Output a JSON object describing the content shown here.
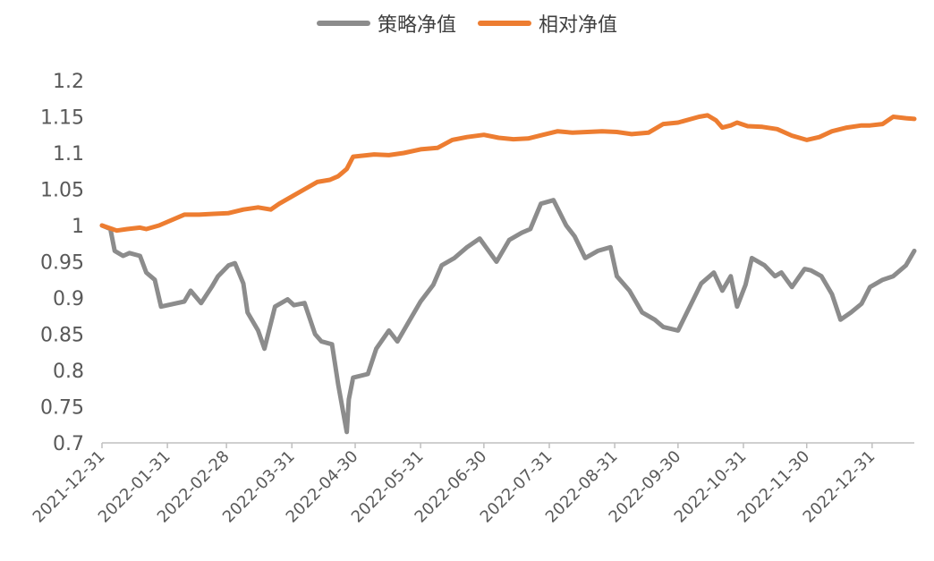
{
  "chart_data": {
    "type": "line",
    "legend_position": "top-center",
    "grid": false,
    "ylim": [
      0.7,
      1.2
    ],
    "y_ticks": [
      "0.7",
      "0.75",
      "0.8",
      "0.85",
      "0.9",
      "0.95",
      "1",
      "1.05",
      "1.1",
      "1.15",
      "1.2"
    ],
    "x_ticks": [
      "2021-12-31",
      "2022-01-31",
      "2022-02-28",
      "2022-03-31",
      "2022-04-30",
      "2022-05-31",
      "2022-06-30",
      "2022-07-31",
      "2022-08-31",
      "2022-09-30",
      "2022-10-31",
      "2022-11-30",
      "2022-12-31"
    ],
    "xlim": [
      "2021-12-31",
      "2023-01-20"
    ],
    "series": [
      {
        "name": "策略净值",
        "color": "#8c8c8c",
        "x": [
          "2021-12-31",
          "2022-01-04",
          "2022-01-06",
          "2022-01-10",
          "2022-01-13",
          "2022-01-18",
          "2022-01-21",
          "2022-01-25",
          "2022-01-28",
          "2022-02-08",
          "2022-02-11",
          "2022-02-16",
          "2022-02-21",
          "2022-02-24",
          "2022-03-01",
          "2022-03-04",
          "2022-03-08",
          "2022-03-10",
          "2022-03-15",
          "2022-03-18",
          "2022-03-23",
          "2022-03-29",
          "2022-04-01",
          "2022-04-06",
          "2022-04-11",
          "2022-04-14",
          "2022-04-19",
          "2022-04-22",
          "2022-04-26",
          "2022-04-27",
          "2022-04-29",
          "2022-05-06",
          "2022-05-10",
          "2022-05-16",
          "2022-05-20",
          "2022-05-25",
          "2022-05-31",
          "2022-06-06",
          "2022-06-10",
          "2022-06-16",
          "2022-06-22",
          "2022-06-28",
          "2022-07-01",
          "2022-07-06",
          "2022-07-12",
          "2022-07-18",
          "2022-07-22",
          "2022-07-27",
          "2022-08-02",
          "2022-08-08",
          "2022-08-12",
          "2022-08-17",
          "2022-08-23",
          "2022-08-29",
          "2022-09-01",
          "2022-09-07",
          "2022-09-13",
          "2022-09-19",
          "2022-09-23",
          "2022-09-30",
          "2022-10-11",
          "2022-10-17",
          "2022-10-21",
          "2022-10-25",
          "2022-10-28",
          "2022-11-01",
          "2022-11-04",
          "2022-11-10",
          "2022-11-15",
          "2022-11-18",
          "2022-11-23",
          "2022-11-29",
          "2022-12-02",
          "2022-12-07",
          "2022-12-12",
          "2022-12-16",
          "2022-12-21",
          "2022-12-26",
          "2022-12-30",
          "2023-01-05",
          "2023-01-10",
          "2023-01-16",
          "2023-01-20"
        ],
        "values": [
          1.0,
          0.995,
          0.965,
          0.958,
          0.962,
          0.958,
          0.935,
          0.925,
          0.888,
          0.895,
          0.91,
          0.893,
          0.915,
          0.93,
          0.945,
          0.948,
          0.92,
          0.88,
          0.855,
          0.83,
          0.888,
          0.898,
          0.89,
          0.893,
          0.85,
          0.84,
          0.836,
          0.78,
          0.715,
          0.76,
          0.79,
          0.795,
          0.83,
          0.855,
          0.84,
          0.865,
          0.895,
          0.918,
          0.945,
          0.955,
          0.97,
          0.982,
          0.97,
          0.95,
          0.98,
          0.99,
          0.995,
          1.03,
          1.035,
          1.0,
          0.985,
          0.955,
          0.965,
          0.97,
          0.93,
          0.91,
          0.88,
          0.87,
          0.86,
          0.855,
          0.92,
          0.935,
          0.91,
          0.93,
          0.888,
          0.918,
          0.955,
          0.945,
          0.93,
          0.935,
          0.915,
          0.94,
          0.938,
          0.93,
          0.905,
          0.87,
          0.88,
          0.892,
          0.915,
          0.925,
          0.93,
          0.945,
          0.965
        ]
      },
      {
        "name": "相对净值",
        "color": "#ed7d31",
        "x": [
          "2021-12-31",
          "2022-01-04",
          "2022-01-07",
          "2022-01-12",
          "2022-01-18",
          "2022-01-21",
          "2022-01-27",
          "2022-02-08",
          "2022-02-15",
          "2022-02-22",
          "2022-03-01",
          "2022-03-08",
          "2022-03-15",
          "2022-03-21",
          "2022-03-25",
          "2022-03-31",
          "2022-04-06",
          "2022-04-12",
          "2022-04-18",
          "2022-04-22",
          "2022-04-26",
          "2022-04-29",
          "2022-05-09",
          "2022-05-16",
          "2022-05-23",
          "2022-05-31",
          "2022-06-08",
          "2022-06-15",
          "2022-06-22",
          "2022-06-30",
          "2022-07-07",
          "2022-07-14",
          "2022-07-21",
          "2022-07-28",
          "2022-08-04",
          "2022-08-11",
          "2022-08-18",
          "2022-08-25",
          "2022-09-01",
          "2022-09-08",
          "2022-09-16",
          "2022-09-23",
          "2022-09-30",
          "2022-10-10",
          "2022-10-14",
          "2022-10-18",
          "2022-10-21",
          "2022-10-25",
          "2022-10-28",
          "2022-11-02",
          "2022-11-09",
          "2022-11-16",
          "2022-11-23",
          "2022-11-30",
          "2022-12-06",
          "2022-12-12",
          "2022-12-19",
          "2022-12-26",
          "2022-12-30",
          "2023-01-05",
          "2023-01-10",
          "2023-01-16",
          "2023-01-20"
        ],
        "values": [
          1.0,
          0.996,
          0.993,
          0.995,
          0.997,
          0.995,
          1.0,
          1.015,
          1.015,
          1.016,
          1.017,
          1.022,
          1.025,
          1.022,
          1.03,
          1.04,
          1.05,
          1.06,
          1.063,
          1.068,
          1.078,
          1.095,
          1.098,
          1.097,
          1.1,
          1.105,
          1.107,
          1.118,
          1.122,
          1.125,
          1.121,
          1.119,
          1.12,
          1.125,
          1.13,
          1.128,
          1.129,
          1.13,
          1.129,
          1.126,
          1.128,
          1.14,
          1.142,
          1.15,
          1.152,
          1.145,
          1.135,
          1.138,
          1.142,
          1.137,
          1.136,
          1.133,
          1.124,
          1.118,
          1.122,
          1.13,
          1.135,
          1.138,
          1.138,
          1.14,
          1.15,
          1.148,
          1.147
        ]
      }
    ]
  }
}
